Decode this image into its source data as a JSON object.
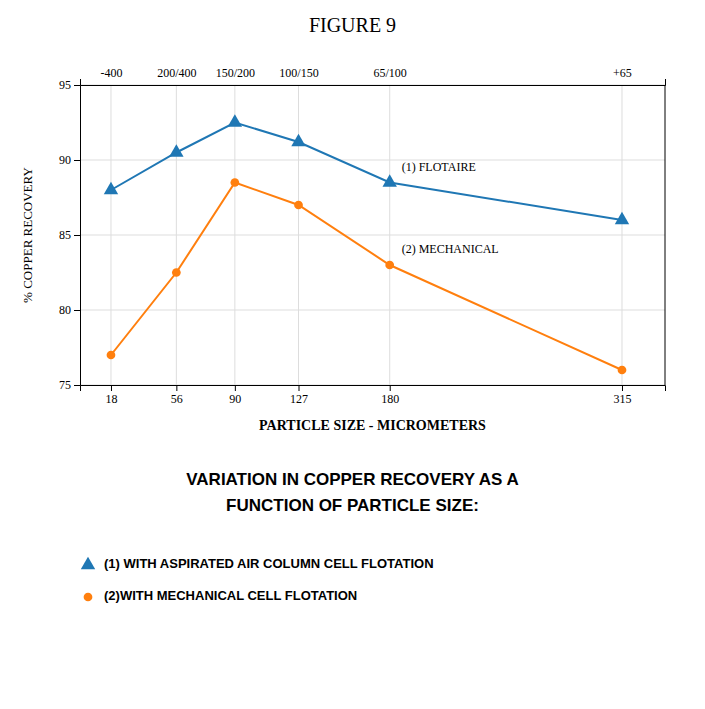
{
  "chart_data": {
    "type": "line",
    "title": "FIGURE 9",
    "subtitle": [
      "VARIATION IN COPPER RECOVERY AS A",
      "FUNCTION OF PARTICLE SIZE:"
    ],
    "xlabel": "PARTICLE SIZE - MICROMETERS",
    "ylabel": "% COPPER RECOVERY",
    "x": [
      18,
      56,
      90,
      127,
      180,
      315
    ],
    "series": [
      {
        "name": "(1) WITH ASPIRATED AIR COLUMN CELL FLOTATION",
        "marker": "triangle",
        "values": [
          88,
          90.5,
          92.5,
          91.2,
          88.5,
          86
        ]
      },
      {
        "name": "(2)WITH MECHANICAL CELL FLOTATION",
        "marker": "circle",
        "values": [
          77,
          82.5,
          88.5,
          87,
          83,
          76
        ]
      }
    ],
    "xlim": [
      0,
      340
    ],
    "xticks": [
      18,
      56,
      90,
      127,
      180,
      315
    ],
    "ylim": [
      75,
      95
    ],
    "yticks": [
      75,
      80,
      85,
      90,
      95
    ],
    "x2lim": [
      0,
      340
    ],
    "x2ticks": [
      {
        "value": 18,
        "label": "-400"
      },
      {
        "value": 56,
        "label": "200/400"
      },
      {
        "value": 90,
        "label": "150/200"
      },
      {
        "value": 127,
        "label": "100/150"
      },
      {
        "value": 180,
        "label": "65/100"
      },
      {
        "value": 315,
        "label": "+65"
      }
    ],
    "annotations": [
      "(1) FLOTAIRE",
      "(2) MECHANICAL"
    ],
    "grid": true,
    "legend": "bottom"
  }
}
